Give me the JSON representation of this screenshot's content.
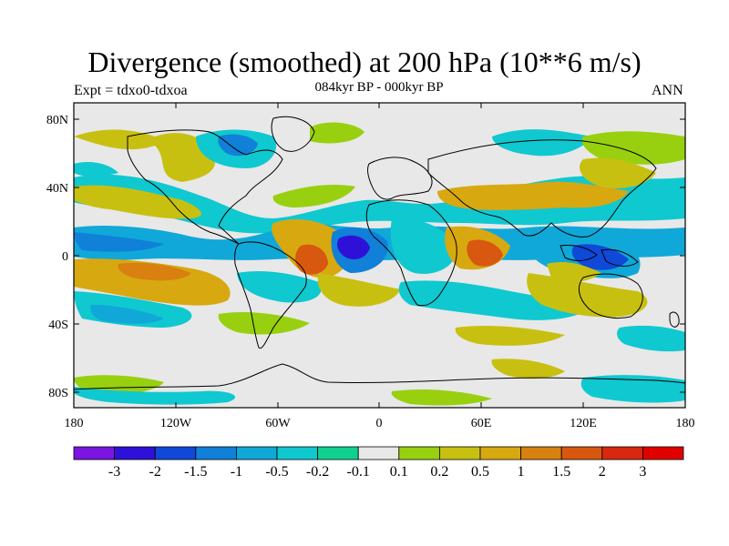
{
  "title": "Divergence (smoothed) at 200 hPa (10**6 m/s)",
  "subtitle_left": "Expt = tdxo0-tdxoa",
  "subtitle_center": "084kyr BP - 000kyr BP",
  "subtitle_right": "ANN",
  "lat_ticks": [
    "80N",
    "40N",
    "0",
    "40S",
    "80S"
  ],
  "lon_ticks": [
    "180",
    "120W",
    "60W",
    "0",
    "60E",
    "120E",
    "180"
  ],
  "colorbar": {
    "colors": [
      "#7a16e0",
      "#2f10d8",
      "#1048d8",
      "#1080d8",
      "#10a8d8",
      "#10c8d0",
      "#10d090",
      "#e8e8e8",
      "#98d010",
      "#c8c010",
      "#d8a810",
      "#d88010",
      "#d85810",
      "#d82810",
      "#e00000"
    ],
    "labels": [
      "-3",
      "-2",
      "-1.5",
      "-1",
      "-0.5",
      "-0.2",
      "-0.1",
      "0.1",
      "0.2",
      "0.5",
      "1",
      "1.5",
      "2",
      "3"
    ]
  }
}
